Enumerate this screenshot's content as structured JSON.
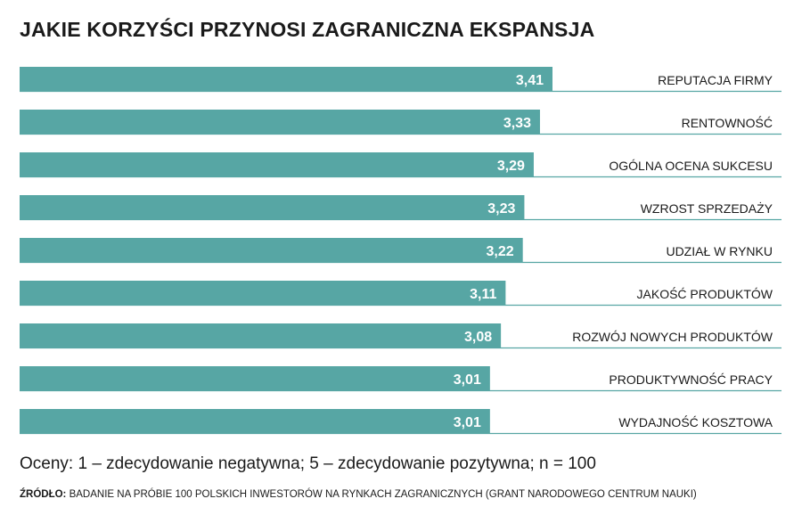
{
  "colors": {
    "bar": "#57a6a4",
    "baseline": "#57a6a4",
    "value_text": "#ffffff",
    "label_text": "#1a1a1a"
  },
  "chart_data": {
    "type": "bar",
    "orientation": "horizontal",
    "title": "JAKIE KORZYŚCI PRZYNOSI ZAGRANICZNA EKSPANSJA",
    "categories": [
      "REPUTACJA FIRMY",
      "RENTOWNOŚĆ",
      "OGÓLNA OCENA SUKCESU",
      "WZROST SPRZEDAŻY",
      "UDZIAŁ W RYNKU",
      "JAKOŚĆ PRODUKTÓW",
      "ROZWÓJ NOWYCH PRODUKTÓW",
      "PRODUKTYWNOŚĆ PRACY",
      "WYDAJNOŚĆ KOSZTOWA"
    ],
    "values": [
      3.41,
      3.33,
      3.29,
      3.23,
      3.22,
      3.11,
      3.08,
      3.01,
      3.01
    ],
    "value_labels": [
      "3,41",
      "3,33",
      "3,29",
      "3,23",
      "3,22",
      "3,11",
      "3,08",
      "3,01",
      "3,01"
    ],
    "xlim": [
      0,
      5
    ],
    "grid": false,
    "legend": "none"
  },
  "note": "Oceny: 1 – zdecydowanie negatywna; 5 – zdecydowanie pozytywna; n = 100",
  "source": {
    "label": "ŹRÓDŁO:",
    "text": " BADANIE NA PRÓBIE 100 POLSKICH INWESTORÓW NA RYNKACH ZAGRANICZNYCH (GRANT NARODOWEGO CENTRUM NAUKI)"
  }
}
